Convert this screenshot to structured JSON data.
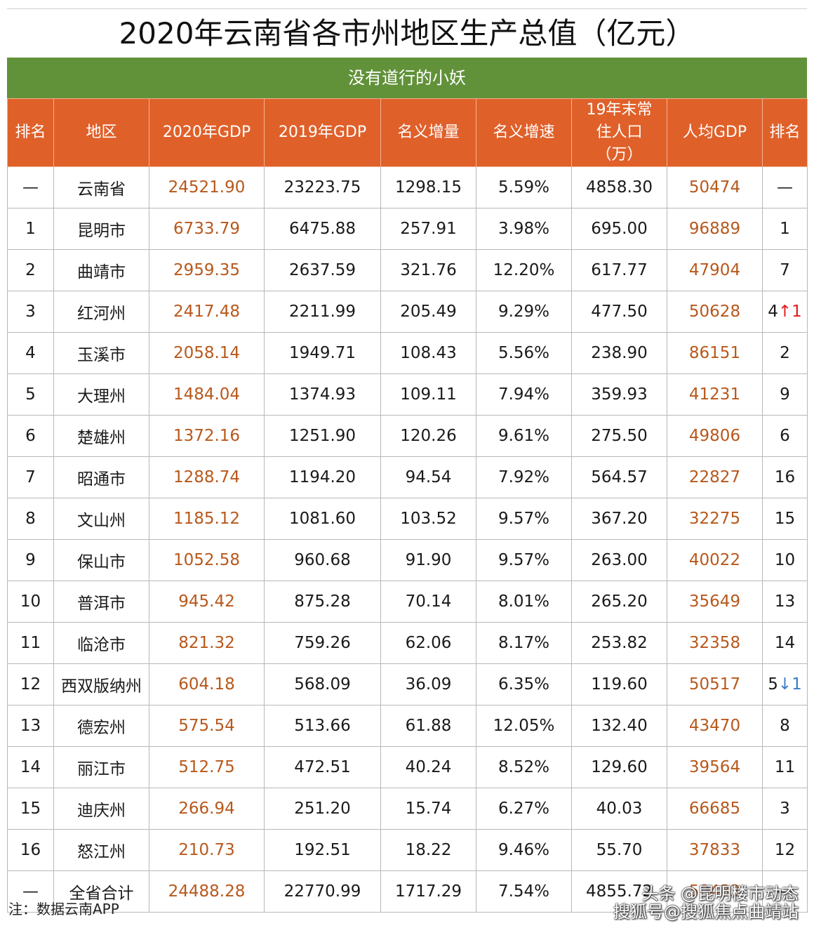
{
  "title": "2020年云南省各市州地区生产总值（亿元）",
  "subtitle": "没有道行的小妖",
  "colors": {
    "header_bg": "#e0602a",
    "subtitle_bg": "#61923a",
    "gdp_text": "#b8581b",
    "up_arrow": "#e01b1b",
    "down_arrow": "#3a7cc9"
  },
  "columns": [
    "排名",
    "地区",
    "2020年GDP",
    "2019年GDP",
    "名义增量",
    "名义增速",
    "19年末常住人口（万）",
    "人均GDP",
    "排名"
  ],
  "rows": [
    {
      "rank": "—",
      "region": "云南省",
      "gdp2020": "24521.90",
      "gdp2019": "23223.75",
      "increase": "1298.15",
      "growth": "5.59%",
      "population": "4858.30",
      "per_capita": "50474",
      "pc_rank": "—",
      "pc_change": "",
      "pc_dir": ""
    },
    {
      "rank": "1",
      "region": "昆明市",
      "gdp2020": "6733.79",
      "gdp2019": "6475.88",
      "increase": "257.91",
      "growth": "3.98%",
      "population": "695.00",
      "per_capita": "96889",
      "pc_rank": "1",
      "pc_change": "",
      "pc_dir": ""
    },
    {
      "rank": "2",
      "region": "曲靖市",
      "gdp2020": "2959.35",
      "gdp2019": "2637.59",
      "increase": "321.76",
      "growth": "12.20%",
      "population": "617.77",
      "per_capita": "47904",
      "pc_rank": "7",
      "pc_change": "",
      "pc_dir": ""
    },
    {
      "rank": "3",
      "region": "红河州",
      "gdp2020": "2417.48",
      "gdp2019": "2211.99",
      "increase": "205.49",
      "growth": "9.29%",
      "population": "477.50",
      "per_capita": "50628",
      "pc_rank": "4",
      "pc_change": "↑1",
      "pc_dir": "up"
    },
    {
      "rank": "4",
      "region": "玉溪市",
      "gdp2020": "2058.14",
      "gdp2019": "1949.71",
      "increase": "108.43",
      "growth": "5.56%",
      "population": "238.90",
      "per_capita": "86151",
      "pc_rank": "2",
      "pc_change": "",
      "pc_dir": ""
    },
    {
      "rank": "5",
      "region": "大理州",
      "gdp2020": "1484.04",
      "gdp2019": "1374.93",
      "increase": "109.11",
      "growth": "7.94%",
      "population": "359.93",
      "per_capita": "41231",
      "pc_rank": "9",
      "pc_change": "",
      "pc_dir": ""
    },
    {
      "rank": "6",
      "region": "楚雄州",
      "gdp2020": "1372.16",
      "gdp2019": "1251.90",
      "increase": "120.26",
      "growth": "9.61%",
      "population": "275.50",
      "per_capita": "49806",
      "pc_rank": "6",
      "pc_change": "",
      "pc_dir": ""
    },
    {
      "rank": "7",
      "region": "昭通市",
      "gdp2020": "1288.74",
      "gdp2019": "1194.20",
      "increase": "94.54",
      "growth": "7.92%",
      "population": "564.57",
      "per_capita": "22827",
      "pc_rank": "16",
      "pc_change": "",
      "pc_dir": ""
    },
    {
      "rank": "8",
      "region": "文山州",
      "gdp2020": "1185.12",
      "gdp2019": "1081.60",
      "increase": "103.52",
      "growth": "9.57%",
      "population": "367.20",
      "per_capita": "32275",
      "pc_rank": "15",
      "pc_change": "",
      "pc_dir": ""
    },
    {
      "rank": "9",
      "region": "保山市",
      "gdp2020": "1052.58",
      "gdp2019": "960.68",
      "increase": "91.90",
      "growth": "9.57%",
      "population": "263.00",
      "per_capita": "40022",
      "pc_rank": "10",
      "pc_change": "",
      "pc_dir": ""
    },
    {
      "rank": "10",
      "region": "普洱市",
      "gdp2020": "945.42",
      "gdp2019": "875.28",
      "increase": "70.14",
      "growth": "8.01%",
      "population": "265.20",
      "per_capita": "35649",
      "pc_rank": "13",
      "pc_change": "",
      "pc_dir": ""
    },
    {
      "rank": "11",
      "region": "临沧市",
      "gdp2020": "821.32",
      "gdp2019": "759.26",
      "increase": "62.06",
      "growth": "8.17%",
      "population": "253.82",
      "per_capita": "32358",
      "pc_rank": "14",
      "pc_change": "",
      "pc_dir": ""
    },
    {
      "rank": "12",
      "region": "西双版纳州",
      "gdp2020": "604.18",
      "gdp2019": "568.09",
      "increase": "36.09",
      "growth": "6.35%",
      "population": "119.60",
      "per_capita": "50517",
      "pc_rank": "5",
      "pc_change": "↓1",
      "pc_dir": "down"
    },
    {
      "rank": "13",
      "region": "德宏州",
      "gdp2020": "575.54",
      "gdp2019": "513.66",
      "increase": "61.88",
      "growth": "12.05%",
      "population": "132.40",
      "per_capita": "43470",
      "pc_rank": "8",
      "pc_change": "",
      "pc_dir": ""
    },
    {
      "rank": "14",
      "region": "丽江市",
      "gdp2020": "512.75",
      "gdp2019": "472.51",
      "increase": "40.24",
      "growth": "8.52%",
      "population": "129.60",
      "per_capita": "39564",
      "pc_rank": "11",
      "pc_change": "",
      "pc_dir": ""
    },
    {
      "rank": "15",
      "region": "迪庆州",
      "gdp2020": "266.94",
      "gdp2019": "251.20",
      "increase": "15.74",
      "growth": "6.27%",
      "population": "40.03",
      "per_capita": "66685",
      "pc_rank": "3",
      "pc_change": "",
      "pc_dir": ""
    },
    {
      "rank": "16",
      "region": "怒江州",
      "gdp2020": "210.73",
      "gdp2019": "192.51",
      "increase": "18.22",
      "growth": "9.46%",
      "population": "55.70",
      "per_capita": "37833",
      "pc_rank": "12",
      "pc_change": "",
      "pc_dir": ""
    },
    {
      "rank": "—",
      "region": "全省合计",
      "gdp2020": "24488.28",
      "gdp2019": "22770.99",
      "increase": "1717.29",
      "growth": "7.54%",
      "population": "4855.72",
      "per_capita": "50432",
      "pc_rank": "—",
      "pc_change": "",
      "pc_dir": ""
    }
  ],
  "note": "注：数据云南APP",
  "watermark": {
    "line1": "头条 @昆明楼市动态",
    "line2": "搜狐号@搜狐焦点曲靖站"
  }
}
